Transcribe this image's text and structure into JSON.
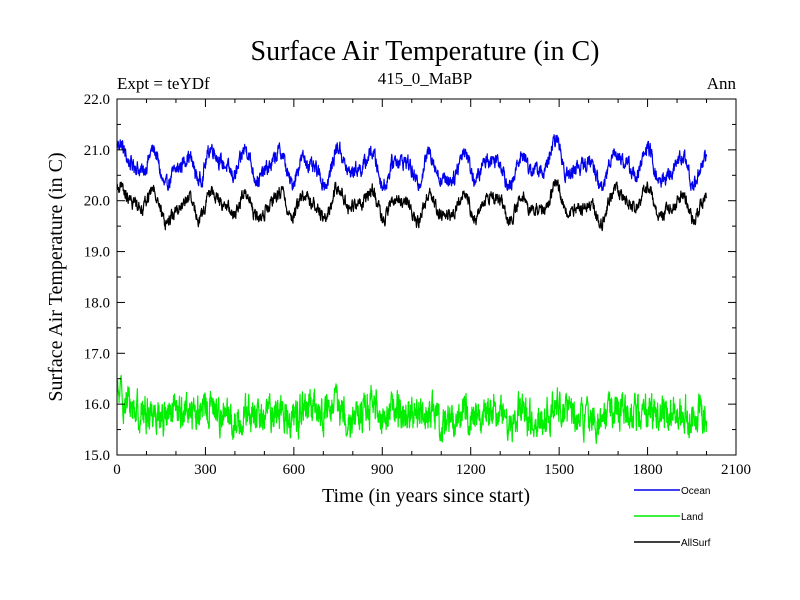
{
  "chart_data": {
    "type": "line",
    "title": "Surface Air Temperature (in C)",
    "subtitle_left": "Expt = teYDf",
    "subtitle_center": "415_0_MaBP",
    "subtitle_right": "Ann",
    "xlabel": "Time (in years since start)",
    "ylabel": "Surface Air Temperature (in C)",
    "xlim": [
      0,
      2100
    ],
    "ylim": [
      15.0,
      22.0
    ],
    "x_ticks": [
      0,
      300,
      600,
      900,
      1200,
      1500,
      1800,
      2100
    ],
    "x_tick_labels": [
      "0",
      "300",
      "600",
      "900",
      "1200",
      "1500",
      "1800",
      "2100"
    ],
    "y_ticks": [
      15.0,
      16.0,
      17.0,
      18.0,
      19.0,
      20.0,
      21.0,
      22.0
    ],
    "y_tick_labels": [
      "15.0",
      "16.0",
      "17.0",
      "18.0",
      "19.0",
      "20.0",
      "21.0",
      "22.0"
    ],
    "x_range": [
      0,
      2000
    ],
    "legend_position": "bottom-right",
    "series": [
      {
        "name": "Ocean",
        "color": "#0000ee",
        "base": 20.7,
        "osc_amp": 0.32,
        "noise_amp": 0.12,
        "min": 20.2,
        "max": 21.3,
        "x_control": [
          0,
          100,
          200,
          300,
          400,
          500,
          600,
          700,
          800,
          900,
          1000,
          1100,
          1200,
          1300,
          1400,
          1500,
          1600,
          1700,
          1800,
          1900,
          2000
        ],
        "y_control": [
          20.8,
          20.7,
          20.6,
          20.7,
          20.8,
          20.6,
          20.7,
          20.6,
          20.7,
          20.7,
          20.6,
          20.6,
          20.7,
          20.6,
          20.7,
          20.8,
          20.6,
          20.7,
          20.7,
          20.6,
          20.6
        ]
      },
      {
        "name": "Land",
        "color": "#00ee00",
        "base": 15.8,
        "osc_amp": 0.08,
        "noise_amp": 0.28,
        "min": 15.1,
        "max": 16.7,
        "x_control": [
          0,
          100,
          200,
          300,
          400,
          500,
          600,
          700,
          800,
          900,
          1000,
          1100,
          1200,
          1300,
          1400,
          1500,
          1600,
          1700,
          1800,
          1900,
          2000
        ],
        "y_control": [
          16.1,
          15.8,
          15.8,
          15.9,
          15.7,
          15.8,
          15.8,
          15.9,
          15.8,
          15.9,
          15.8,
          15.7,
          15.8,
          15.8,
          15.7,
          15.9,
          15.7,
          15.9,
          15.8,
          15.8,
          15.8
        ]
      },
      {
        "name": "AllSurf",
        "color": "#000000",
        "base": 19.95,
        "osc_amp": 0.27,
        "noise_amp": 0.1,
        "min": 19.4,
        "max": 20.45,
        "x_control": [
          0,
          100,
          200,
          300,
          400,
          500,
          600,
          700,
          800,
          900,
          1000,
          1100,
          1200,
          1300,
          1400,
          1500,
          1600,
          1700,
          1800,
          1900,
          2000
        ],
        "y_control": [
          20.0,
          20.0,
          19.8,
          19.9,
          20.0,
          19.8,
          20.0,
          19.9,
          20.0,
          20.0,
          19.8,
          19.9,
          19.9,
          19.9,
          19.9,
          20.0,
          19.8,
          20.0,
          20.0,
          19.9,
          19.8
        ]
      }
    ]
  }
}
